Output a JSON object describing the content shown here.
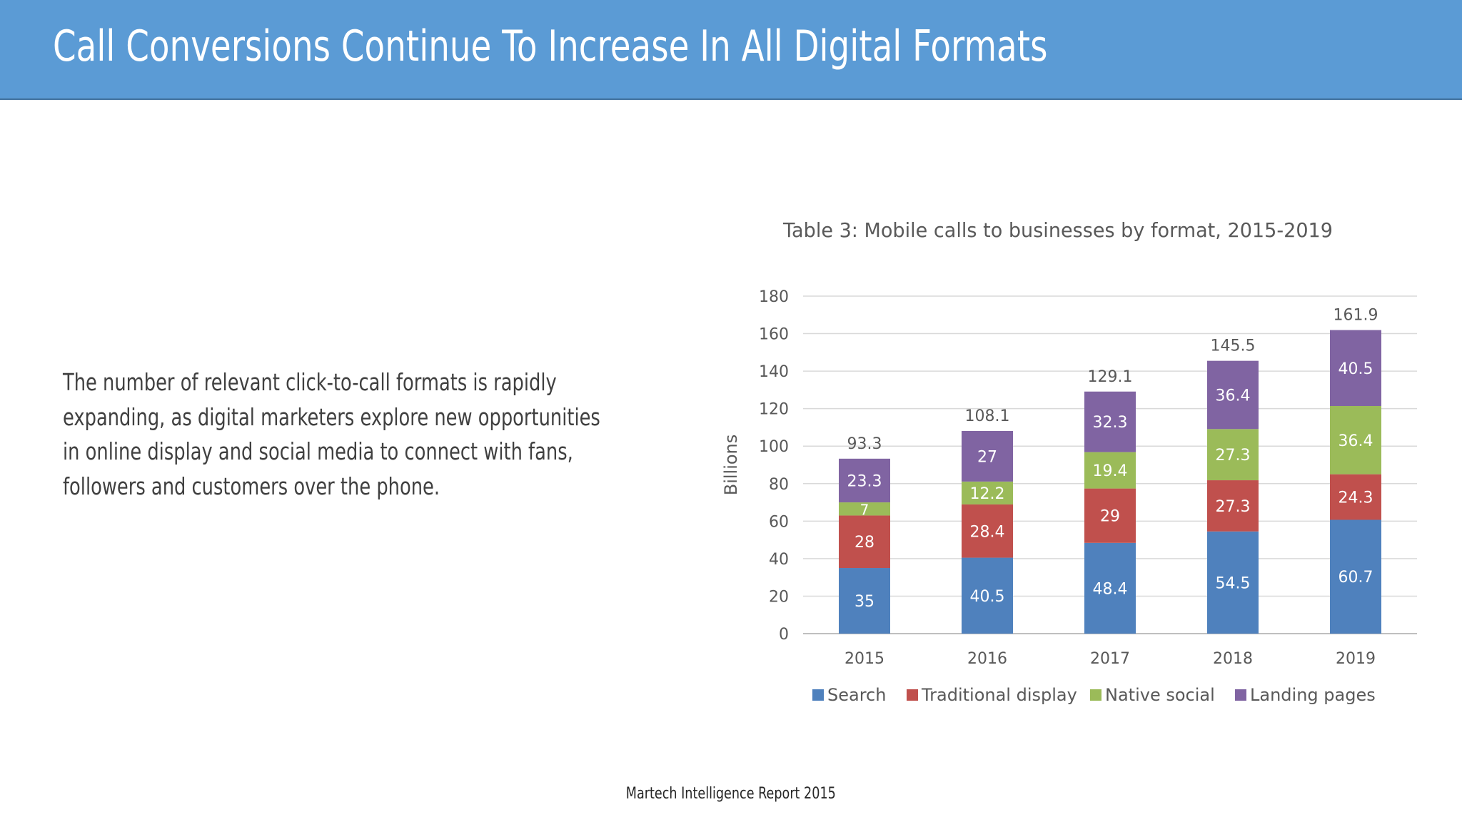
{
  "slide": {
    "title": "Call Conversions Continue To Increase In All Digital Formats",
    "body_lines": [
      "The number of relevant click-to-call formats is rapidly",
      "expanding, as digital marketers explore new opportunities",
      "in online display and social media to connect with fans,",
      "followers and customers over the phone."
    ],
    "source": "Martech Intelligence Report 2015"
  },
  "colors": {
    "header": "#5b9bd5",
    "search": "#4f81bd",
    "traditional_display": "#c0504d",
    "native_social": "#9bbb59",
    "landing_pages": "#8064a2"
  },
  "chart_data": {
    "type": "bar",
    "stacked": true,
    "title": "Table 3: Mobile calls to businesses by format, 2015-2019",
    "xlabel": "",
    "ylabel": "Billions",
    "ylim": [
      0,
      180
    ],
    "yticks": [
      0,
      20,
      40,
      60,
      80,
      100,
      120,
      140,
      160,
      180
    ],
    "grid": true,
    "legend_position": "bottom",
    "categories": [
      "2015",
      "2016",
      "2017",
      "2018",
      "2019"
    ],
    "series": [
      {
        "name": "Search",
        "color": "#4f81bd",
        "values": [
          35,
          40.5,
          48.4,
          54.5,
          60.7
        ]
      },
      {
        "name": "Traditional display",
        "color": "#c0504d",
        "values": [
          28,
          28.4,
          29,
          27.3,
          24.3
        ]
      },
      {
        "name": "Native social",
        "color": "#9bbb59",
        "values": [
          7,
          12.2,
          19.4,
          27.3,
          36.4
        ]
      },
      {
        "name": "Landing pages",
        "color": "#8064a2",
        "values": [
          23.3,
          27,
          32.3,
          36.4,
          40.5
        ]
      }
    ],
    "totals": [
      93.3,
      108.1,
      129.1,
      145.5,
      161.9
    ]
  }
}
